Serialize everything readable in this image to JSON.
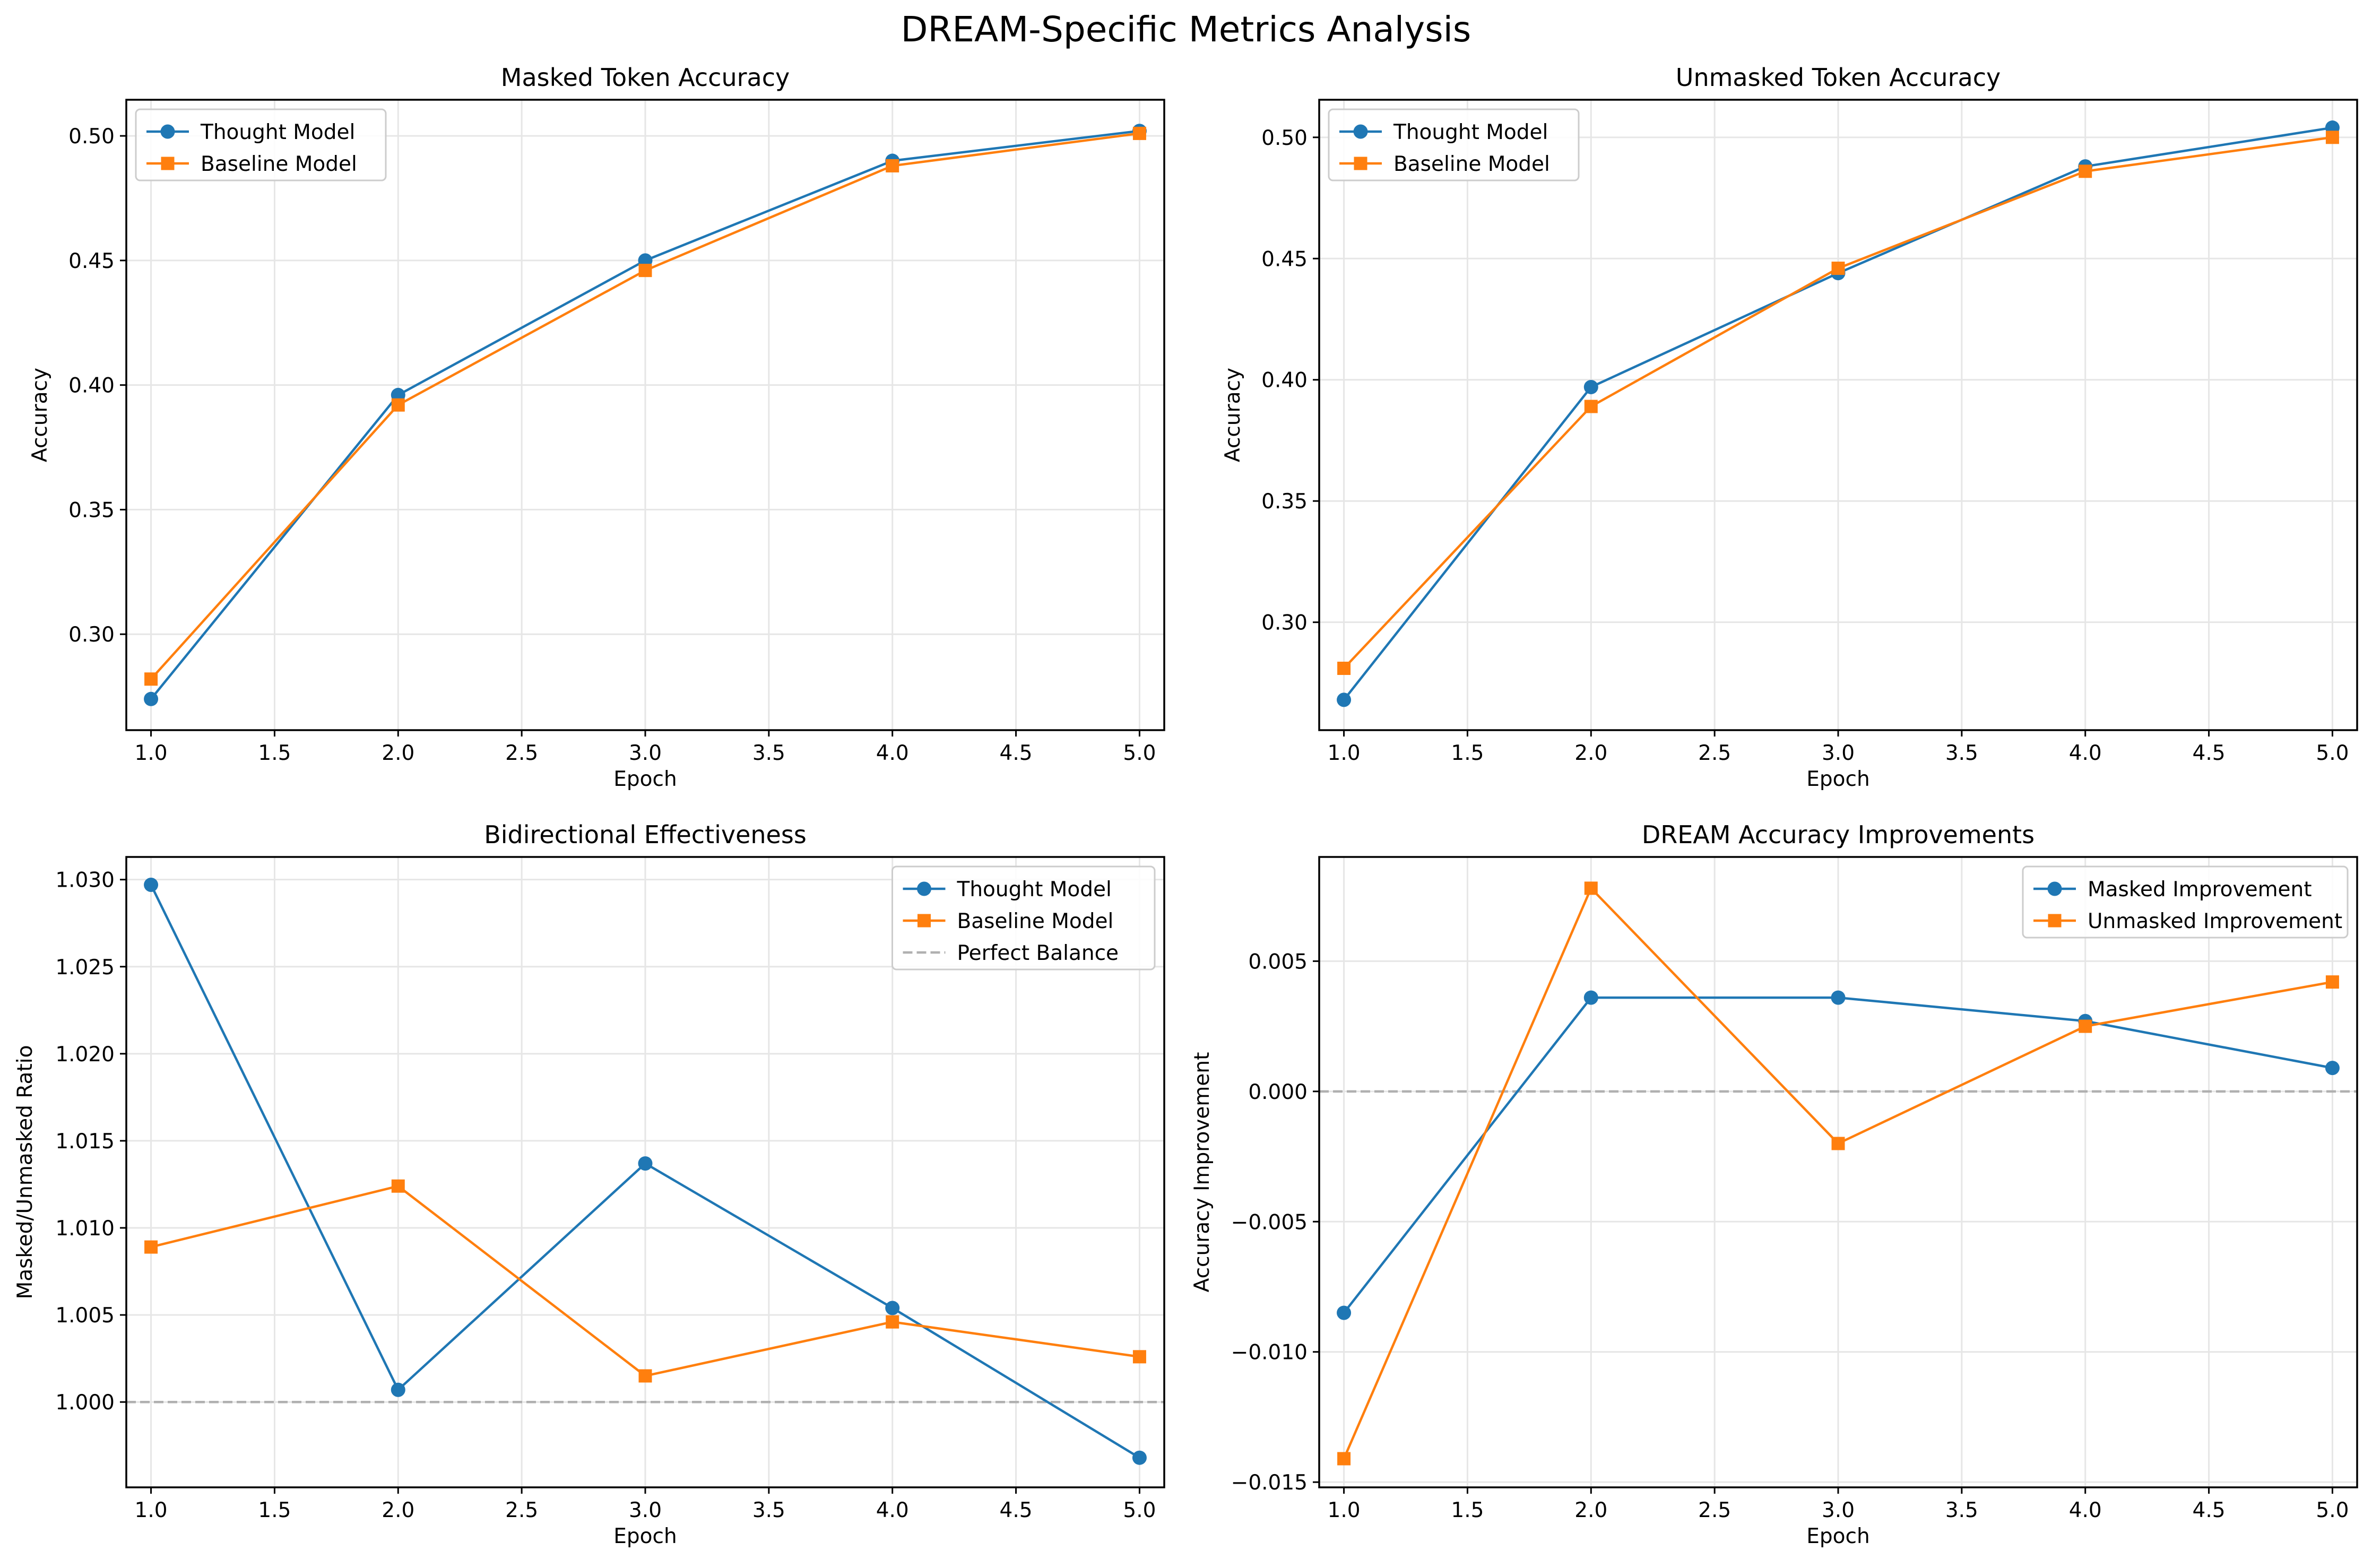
{
  "figure_title": "DREAM-Specific Metrics Analysis",
  "colors": {
    "blue": "#1f77b4",
    "orange": "#ff7f0e",
    "ref": "#b0b0b0"
  },
  "chart_data": [
    {
      "type": "line",
      "title": "Masked Token Accuracy",
      "xlabel": "Epoch",
      "ylabel": "Accuracy",
      "xlim": [
        0.9,
        5.1
      ],
      "ylim": [
        0.2615,
        0.5145
      ],
      "xticks": [
        1.0,
        1.5,
        2.0,
        2.5,
        3.0,
        3.5,
        4.0,
        4.5,
        5.0
      ],
      "xtick_labels": [
        "1.0",
        "1.5",
        "2.0",
        "2.5",
        "3.0",
        "3.5",
        "4.0",
        "4.5",
        "5.0"
      ],
      "yticks": [
        0.3,
        0.35,
        0.4,
        0.45,
        0.5
      ],
      "ytick_labels": [
        "0.30",
        "0.35",
        "0.40",
        "0.45",
        "0.50"
      ],
      "grid": true,
      "legend_position": "upper-left",
      "x": [
        1,
        2,
        3,
        4,
        5
      ],
      "series": [
        {
          "name": "Thought Model",
          "values": [
            0.274,
            0.396,
            0.45,
            0.49,
            0.502
          ],
          "color": "#1f77b4",
          "marker": "circle"
        },
        {
          "name": "Baseline Model",
          "values": [
            0.282,
            0.392,
            0.446,
            0.488,
            0.501
          ],
          "color": "#ff7f0e",
          "marker": "square"
        }
      ],
      "reference_lines": []
    },
    {
      "type": "line",
      "title": "Unmasked Token Accuracy",
      "xlabel": "Epoch",
      "ylabel": "Accuracy",
      "xlim": [
        0.9,
        5.1
      ],
      "ylim": [
        0.2555,
        0.5155
      ],
      "xticks": [
        1.0,
        1.5,
        2.0,
        2.5,
        3.0,
        3.5,
        4.0,
        4.5,
        5.0
      ],
      "xtick_labels": [
        "1.0",
        "1.5",
        "2.0",
        "2.5",
        "3.0",
        "3.5",
        "4.0",
        "4.5",
        "5.0"
      ],
      "yticks": [
        0.3,
        0.35,
        0.4,
        0.45,
        0.5
      ],
      "ytick_labels": [
        "0.30",
        "0.35",
        "0.40",
        "0.45",
        "0.50"
      ],
      "grid": true,
      "legend_position": "upper-left",
      "x": [
        1,
        2,
        3,
        4,
        5
      ],
      "series": [
        {
          "name": "Thought Model",
          "values": [
            0.268,
            0.397,
            0.444,
            0.488,
            0.504
          ],
          "color": "#1f77b4",
          "marker": "circle"
        },
        {
          "name": "Baseline Model",
          "values": [
            0.281,
            0.389,
            0.446,
            0.486,
            0.5
          ],
          "color": "#ff7f0e",
          "marker": "square"
        }
      ],
      "reference_lines": []
    },
    {
      "type": "line",
      "title": "Bidirectional Effectiveness",
      "xlabel": "Epoch",
      "ylabel": "Masked/Unmasked Ratio",
      "xlim": [
        0.9,
        5.1
      ],
      "ylim": [
        0.9951,
        1.0313
      ],
      "xticks": [
        1.0,
        1.5,
        2.0,
        2.5,
        3.0,
        3.5,
        4.0,
        4.5,
        5.0
      ],
      "xtick_labels": [
        "1.0",
        "1.5",
        "2.0",
        "2.5",
        "3.0",
        "3.5",
        "4.0",
        "4.5",
        "5.0"
      ],
      "yticks": [
        1.0,
        1.005,
        1.01,
        1.015,
        1.02,
        1.025,
        1.03
      ],
      "ytick_labels": [
        "1.000",
        "1.005",
        "1.010",
        "1.015",
        "1.020",
        "1.025",
        "1.030"
      ],
      "grid": true,
      "legend_position": "upper-right",
      "x": [
        1,
        2,
        3,
        4,
        5
      ],
      "series": [
        {
          "name": "Thought Model",
          "values": [
            1.0297,
            1.0007,
            1.0137,
            1.0054,
            0.9968
          ],
          "color": "#1f77b4",
          "marker": "circle"
        },
        {
          "name": "Baseline Model",
          "values": [
            1.0089,
            1.0124,
            1.0015,
            1.0046,
            1.0026
          ],
          "color": "#ff7f0e",
          "marker": "square"
        }
      ],
      "reference_lines": [
        {
          "name": "Perfect Balance",
          "y": 1.0,
          "style": "dashed",
          "color": "#b0b0b0",
          "in_legend": true
        }
      ]
    },
    {
      "type": "line",
      "title": "DREAM Accuracy Improvements",
      "xlabel": "Epoch",
      "ylabel": "Accuracy Improvement",
      "xlim": [
        0.9,
        5.1
      ],
      "ylim": [
        -0.0152,
        0.009
      ],
      "xticks": [
        1.0,
        1.5,
        2.0,
        2.5,
        3.0,
        3.5,
        4.0,
        4.5,
        5.0
      ],
      "xtick_labels": [
        "1.0",
        "1.5",
        "2.0",
        "2.5",
        "3.0",
        "3.5",
        "4.0",
        "4.5",
        "5.0"
      ],
      "yticks": [
        -0.015,
        -0.01,
        -0.005,
        0.0,
        0.005
      ],
      "ytick_labels": [
        "−0.015",
        "−0.010",
        "−0.005",
        "0.000",
        "0.005"
      ],
      "grid": true,
      "legend_position": "upper-right",
      "x": [
        1,
        2,
        3,
        4,
        5
      ],
      "series": [
        {
          "name": "Masked Improvement",
          "values": [
            -0.0085,
            0.0036,
            0.0036,
            0.0027,
            0.0009
          ],
          "color": "#1f77b4",
          "marker": "circle"
        },
        {
          "name": "Unmasked Improvement",
          "values": [
            -0.0141,
            0.0078,
            -0.002,
            0.0025,
            0.0042
          ],
          "color": "#ff7f0e",
          "marker": "square"
        }
      ],
      "reference_lines": [
        {
          "y": 0.0,
          "style": "dashed",
          "color": "#b0b0b0",
          "in_legend": false
        }
      ]
    }
  ]
}
